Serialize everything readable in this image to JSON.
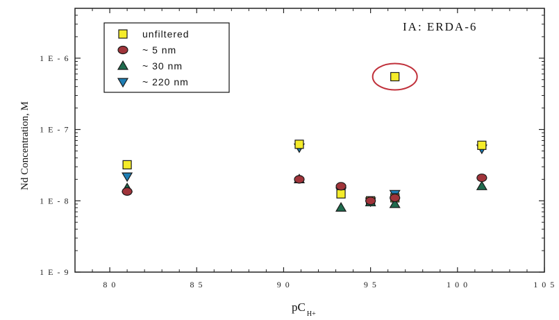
{
  "chart_data": {
    "type": "scatter",
    "title": "",
    "annotation": "IA:  ERDA-6",
    "xlabel_main": "pC",
    "xlabel_sub": "H+",
    "ylabel": "Nd Concentration, M",
    "xlim": [
      7.8,
      10.5
    ],
    "ylim": [
      1e-09,
      5e-06
    ],
    "yscale": "log",
    "x_ticks": [
      8.0,
      8.5,
      9.0,
      9.5,
      10.0,
      10.5
    ],
    "x_tick_labels": [
      "8 0",
      "8 5",
      "9 0",
      "9 5",
      "1 0 0",
      "1 0 5"
    ],
    "y_ticks": [
      1e-09,
      1e-08,
      1e-07,
      1e-06
    ],
    "y_tick_labels": [
      "1 E - 9",
      "1 E - 8",
      "1 E - 7",
      "1 E - 6"
    ],
    "grid": false,
    "legend_position": "top-left",
    "series": [
      {
        "name": "unfiltered",
        "marker": "square",
        "color": "#f5ec2a",
        "x": [
          8.1,
          9.09,
          9.33,
          9.5,
          9.64,
          9.64,
          10.14
        ],
        "y": [
          3.2e-08,
          6.2e-08,
          1.25e-08,
          1e-08,
          1.1e-08,
          5.5e-07,
          6e-08
        ]
      },
      {
        "name": "~ 5 nm",
        "marker": "circle",
        "color": "#a0343a",
        "x": [
          8.1,
          9.09,
          9.33,
          9.5,
          9.64,
          10.14
        ],
        "y": [
          1.35e-08,
          2e-08,
          1.6e-08,
          1e-08,
          1.1e-08,
          2.1e-08
        ]
      },
      {
        "name": "~ 30 nm",
        "marker": "triangle-up",
        "color": "#1f6b4e",
        "x": [
          8.1,
          9.09,
          9.33,
          9.5,
          9.64,
          10.14
        ],
        "y": [
          1.5e-08,
          2e-08,
          8e-09,
          9.5e-09,
          9e-09,
          1.6e-08
        ]
      },
      {
        "name": "~ 220 nm",
        "marker": "triangle-down",
        "color": "#1e7eb4",
        "x": [
          8.1,
          9.09,
          9.33,
          9.5,
          9.64,
          10.14
        ],
        "y": [
          2.2e-08,
          5.6e-08,
          1.35e-08,
          9.8e-09,
          1.25e-08,
          5.4e-08
        ]
      }
    ],
    "highlight": {
      "x": 9.64,
      "y": 5.5e-07,
      "shape": "ellipse",
      "color": "#c0303a"
    }
  }
}
